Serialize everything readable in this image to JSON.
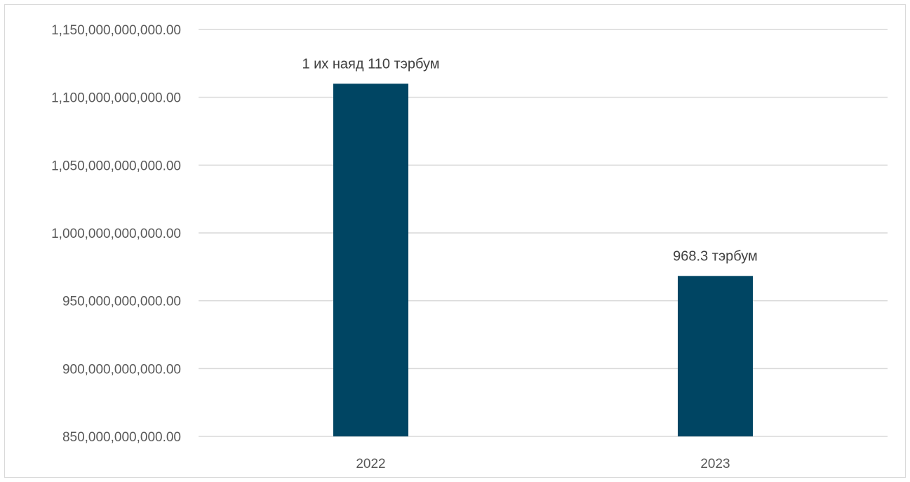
{
  "chart_data": {
    "type": "bar",
    "categories": [
      "2022",
      "2023"
    ],
    "values": [
      1110000000000,
      968300000000
    ],
    "data_labels": [
      "1 их наяд 110 тэрбум",
      "968.3 тэрбум"
    ],
    "y_ticks": [
      {
        "value": 850000000000,
        "label": "850,000,000,000.00"
      },
      {
        "value": 900000000000,
        "label": "900,000,000,000.00"
      },
      {
        "value": 950000000000,
        "label": "950,000,000,000.00"
      },
      {
        "value": 1000000000000,
        "label": "1,000,000,000,000.00"
      },
      {
        "value": 1050000000000,
        "label": "1,050,000,000,000.00"
      },
      {
        "value": 1100000000000,
        "label": "1,100,000,000,000.00"
      },
      {
        "value": 1150000000000,
        "label": "1,150,000,000,000.00"
      }
    ],
    "ylim": [
      850000000000,
      1150000000000
    ],
    "grid": true,
    "legend": "none",
    "bar_color": "#004563",
    "grid_color": "#d9d9d9"
  }
}
